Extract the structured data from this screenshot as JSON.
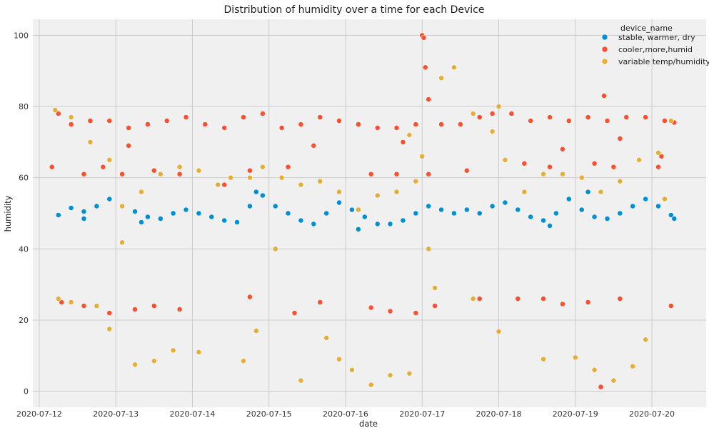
{
  "chart_data": {
    "type": "scatter",
    "title": "Distribution of humidity over a time for each Device",
    "xlabel": "date",
    "ylabel": "humidity",
    "x_ticks": [
      "2020-07-12",
      "2020-07-13",
      "2020-07-14",
      "2020-07-15",
      "2020-07-16",
      "2020-07-17",
      "2020-07-18",
      "2020-07-19",
      "2020-07-20"
    ],
    "y_ticks": [
      0,
      20,
      40,
      60,
      80,
      100
    ],
    "xlim": [
      "2020-07-11T22:00",
      "2020-07-20T17:00"
    ],
    "ylim": [
      -4.5,
      104.5
    ],
    "grid": true,
    "background": "#f0f0f0",
    "grid_color": "#cbcbcb",
    "legend": {
      "title": "device_name",
      "placement": "top-right"
    },
    "series": [
      {
        "name": "stable, warmer, dry",
        "color": "#008fd5",
        "points": [
          [
            "2020-07-12T06:00",
            49.5
          ],
          [
            "2020-07-12T10:00",
            51.5
          ],
          [
            "2020-07-12T14:00",
            50.5
          ],
          [
            "2020-07-12T18:00",
            52
          ],
          [
            "2020-07-12T22:00",
            54
          ],
          [
            "2020-07-13T02:00",
            52
          ],
          [
            "2020-07-13T06:00",
            50.5
          ],
          [
            "2020-07-13T10:00",
            49
          ],
          [
            "2020-07-13T14:00",
            48.5
          ],
          [
            "2020-07-13T18:00",
            50
          ],
          [
            "2020-07-13T22:00",
            51
          ],
          [
            "2020-07-14T02:00",
            50
          ],
          [
            "2020-07-14T06:00",
            49
          ],
          [
            "2020-07-14T10:00",
            48
          ],
          [
            "2020-07-14T14:00",
            47.5
          ],
          [
            "2020-07-14T18:00",
            52
          ],
          [
            "2020-07-14T22:00",
            55
          ],
          [
            "2020-07-15T02:00",
            52
          ],
          [
            "2020-07-15T06:00",
            50
          ],
          [
            "2020-07-15T10:00",
            48
          ],
          [
            "2020-07-15T14:00",
            47
          ],
          [
            "2020-07-15T18:00",
            50
          ],
          [
            "2020-07-15T22:00",
            53
          ],
          [
            "2020-07-16T02:00",
            51
          ],
          [
            "2020-07-16T06:00",
            49
          ],
          [
            "2020-07-16T10:00",
            47
          ],
          [
            "2020-07-16T14:00",
            47
          ],
          [
            "2020-07-16T18:00",
            48
          ],
          [
            "2020-07-16T22:00",
            50
          ],
          [
            "2020-07-17T02:00",
            52
          ],
          [
            "2020-07-17T06:00",
            51
          ],
          [
            "2020-07-17T10:00",
            50
          ],
          [
            "2020-07-17T14:00",
            51
          ],
          [
            "2020-07-17T18:00",
            50
          ],
          [
            "2020-07-17T22:00",
            52
          ],
          [
            "2020-07-18T02:00",
            53
          ],
          [
            "2020-07-18T06:00",
            51
          ],
          [
            "2020-07-18T10:00",
            49
          ],
          [
            "2020-07-18T14:00",
            48
          ],
          [
            "2020-07-18T18:00",
            50
          ],
          [
            "2020-07-18T22:00",
            54
          ],
          [
            "2020-07-19T02:00",
            51
          ],
          [
            "2020-07-19T06:00",
            49
          ],
          [
            "2020-07-19T10:00",
            48.5
          ],
          [
            "2020-07-19T14:00",
            50
          ],
          [
            "2020-07-19T18:00",
            52
          ],
          [
            "2020-07-19T22:00",
            54
          ],
          [
            "2020-07-20T02:00",
            52
          ],
          [
            "2020-07-20T06:00",
            49.5
          ],
          [
            "2020-07-20T07:00",
            48.5
          ],
          [
            "2020-07-12T14:00",
            48.5
          ],
          [
            "2020-07-14T20:00",
            56
          ],
          [
            "2020-07-16T04:00",
            45.5
          ],
          [
            "2020-07-18T16:00",
            46.5
          ],
          [
            "2020-07-19T04:00",
            56
          ],
          [
            "2020-07-13T08:00",
            47.5
          ]
        ]
      },
      {
        "name": "cooler,more,humid",
        "color": "#fc4f30",
        "points": [
          [
            "2020-07-12T06:00",
            78
          ],
          [
            "2020-07-12T10:00",
            75
          ],
          [
            "2020-07-12T16:00",
            76
          ],
          [
            "2020-07-12T22:00",
            76
          ],
          [
            "2020-07-13T04:00",
            74
          ],
          [
            "2020-07-13T10:00",
            75
          ],
          [
            "2020-07-13T16:00",
            76
          ],
          [
            "2020-07-13T22:00",
            77
          ],
          [
            "2020-07-14T04:00",
            75
          ],
          [
            "2020-07-14T10:00",
            74
          ],
          [
            "2020-07-14T16:00",
            77
          ],
          [
            "2020-07-14T22:00",
            78
          ],
          [
            "2020-07-15T04:00",
            74
          ],
          [
            "2020-07-15T10:00",
            75
          ],
          [
            "2020-07-15T16:00",
            77
          ],
          [
            "2020-07-15T22:00",
            76
          ],
          [
            "2020-07-16T04:00",
            75
          ],
          [
            "2020-07-16T10:00",
            74
          ],
          [
            "2020-07-16T16:00",
            74
          ],
          [
            "2020-07-16T22:00",
            75
          ],
          [
            "2020-07-17T02:00",
            82
          ],
          [
            "2020-07-17T06:00",
            75
          ],
          [
            "2020-07-17T12:00",
            75
          ],
          [
            "2020-07-17T18:00",
            77
          ],
          [
            "2020-07-17T22:00",
            78
          ],
          [
            "2020-07-18T04:00",
            78
          ],
          [
            "2020-07-18T10:00",
            76
          ],
          [
            "2020-07-18T16:00",
            77
          ],
          [
            "2020-07-18T22:00",
            76
          ],
          [
            "2020-07-19T04:00",
            77
          ],
          [
            "2020-07-19T10:00",
            76
          ],
          [
            "2020-07-19T16:00",
            77
          ],
          [
            "2020-07-19T22:00",
            77
          ],
          [
            "2020-07-20T04:00",
            76
          ],
          [
            "2020-07-20T07:00",
            75.5
          ],
          [
            "2020-07-12T04:00",
            63
          ],
          [
            "2020-07-12T14:00",
            61
          ],
          [
            "2020-07-12T20:00",
            63
          ],
          [
            "2020-07-13T02:00",
            61
          ],
          [
            "2020-07-13T12:00",
            62
          ],
          [
            "2020-07-13T20:00",
            61
          ],
          [
            "2020-07-14T10:00",
            58
          ],
          [
            "2020-07-14T18:00",
            62
          ],
          [
            "2020-07-15T06:00",
            63
          ],
          [
            "2020-07-16T08:00",
            61
          ],
          [
            "2020-07-16T16:00",
            61
          ],
          [
            "2020-07-17T02:00",
            61
          ],
          [
            "2020-07-17T14:00",
            62
          ],
          [
            "2020-07-18T08:00",
            64
          ],
          [
            "2020-07-18T16:00",
            63
          ],
          [
            "2020-07-19T06:00",
            64
          ],
          [
            "2020-07-19T12:00",
            63
          ],
          [
            "2020-07-20T02:00",
            63
          ],
          [
            "2020-07-12T07:00",
            25
          ],
          [
            "2020-07-12T14:00",
            24
          ],
          [
            "2020-07-12T22:00",
            22
          ],
          [
            "2020-07-13T06:00",
            23
          ],
          [
            "2020-07-13T12:00",
            24
          ],
          [
            "2020-07-13T20:00",
            23
          ],
          [
            "2020-07-14T18:00",
            26.5
          ],
          [
            "2020-07-15T08:00",
            22
          ],
          [
            "2020-07-15T16:00",
            25
          ],
          [
            "2020-07-16T08:00",
            23.5
          ],
          [
            "2020-07-16T14:00",
            22.5
          ],
          [
            "2020-07-16T22:00",
            22
          ],
          [
            "2020-07-17T04:00",
            24
          ],
          [
            "2020-07-17T18:00",
            26
          ],
          [
            "2020-07-18T06:00",
            26
          ],
          [
            "2020-07-18T14:00",
            26
          ],
          [
            "2020-07-18T20:00",
            24.5
          ],
          [
            "2020-07-19T04:00",
            25
          ],
          [
            "2020-07-19T14:00",
            26
          ],
          [
            "2020-07-20T06:00",
            24
          ],
          [
            "2020-07-17T00:00",
            100
          ],
          [
            "2020-07-17T00:30",
            99.3
          ],
          [
            "2020-07-17T01:00",
            91
          ],
          [
            "2020-07-19T09:00",
            83
          ],
          [
            "2020-07-19T08:00",
            1.2
          ],
          [
            "2020-07-13T04:00",
            69
          ],
          [
            "2020-07-15T14:00",
            69
          ],
          [
            "2020-07-16T18:00",
            70
          ],
          [
            "2020-07-18T20:00",
            68
          ],
          [
            "2020-07-19T14:00",
            71
          ],
          [
            "2020-07-20T03:00",
            66
          ]
        ]
      },
      {
        "name": "variable temp/humidity",
        "color": "#e5ae38",
        "points": [
          [
            "2020-07-12T05:00",
            79
          ],
          [
            "2020-07-12T10:00",
            77
          ],
          [
            "2020-07-12T16:00",
            70
          ],
          [
            "2020-07-12T22:00",
            65
          ],
          [
            "2020-07-13T02:00",
            52
          ],
          [
            "2020-07-13T08:00",
            56
          ],
          [
            "2020-07-13T14:00",
            61
          ],
          [
            "2020-07-13T20:00",
            63
          ],
          [
            "2020-07-14T02:00",
            62
          ],
          [
            "2020-07-14T08:00",
            58
          ],
          [
            "2020-07-14T12:00",
            60
          ],
          [
            "2020-07-14T18:00",
            60
          ],
          [
            "2020-07-14T22:00",
            63
          ],
          [
            "2020-07-15T04:00",
            60
          ],
          [
            "2020-07-15T10:00",
            58
          ],
          [
            "2020-07-15T16:00",
            59
          ],
          [
            "2020-07-15T22:00",
            56
          ],
          [
            "2020-07-16T04:00",
            51
          ],
          [
            "2020-07-16T10:00",
            55
          ],
          [
            "2020-07-16T16:00",
            56
          ],
          [
            "2020-07-16T22:00",
            59
          ],
          [
            "2020-07-17T00:00",
            66
          ],
          [
            "2020-07-17T06:00",
            88
          ],
          [
            "2020-07-17T10:00",
            91
          ],
          [
            "2020-07-17T16:00",
            78
          ],
          [
            "2020-07-17T22:00",
            73
          ],
          [
            "2020-07-18T02:00",
            65
          ],
          [
            "2020-07-18T08:00",
            56
          ],
          [
            "2020-07-18T14:00",
            61
          ],
          [
            "2020-07-18T20:00",
            61
          ],
          [
            "2020-07-19T02:00",
            60
          ],
          [
            "2020-07-19T08:00",
            56
          ],
          [
            "2020-07-19T14:00",
            59
          ],
          [
            "2020-07-19T20:00",
            65
          ],
          [
            "2020-07-20T02:00",
            67
          ],
          [
            "2020-07-20T06:00",
            76
          ],
          [
            "2020-07-12T06:00",
            26
          ],
          [
            "2020-07-12T10:00",
            25
          ],
          [
            "2020-07-12T18:00",
            24
          ],
          [
            "2020-07-12T22:00",
            17.5
          ],
          [
            "2020-07-13T02:00",
            41.8
          ],
          [
            "2020-07-13T06:00",
            7.5
          ],
          [
            "2020-07-13T12:00",
            8.5
          ],
          [
            "2020-07-13T18:00",
            11.5
          ],
          [
            "2020-07-14T02:00",
            11
          ],
          [
            "2020-07-14T16:00",
            8.5
          ],
          [
            "2020-07-14T20:00",
            17
          ],
          [
            "2020-07-15T02:00",
            40
          ],
          [
            "2020-07-15T10:00",
            3
          ],
          [
            "2020-07-15T18:00",
            15
          ],
          [
            "2020-07-15T22:00",
            9
          ],
          [
            "2020-07-16T02:00",
            6
          ],
          [
            "2020-07-16T08:00",
            1.8
          ],
          [
            "2020-07-16T14:00",
            4.5
          ],
          [
            "2020-07-16T20:00",
            5
          ],
          [
            "2020-07-17T04:00",
            29
          ],
          [
            "2020-07-17T16:00",
            26
          ],
          [
            "2020-07-18T00:00",
            16.8
          ],
          [
            "2020-07-18T14:00",
            9
          ],
          [
            "2020-07-19T00:00",
            9.5
          ],
          [
            "2020-07-19T06:00",
            6
          ],
          [
            "2020-07-19T12:00",
            3
          ],
          [
            "2020-07-19T18:00",
            7
          ],
          [
            "2020-07-19T22:00",
            14.5
          ],
          [
            "2020-07-20T04:00",
            54
          ],
          [
            "2020-07-17T02:00",
            40
          ],
          [
            "2020-07-18T00:00",
            80
          ],
          [
            "2020-07-16T20:00",
            72
          ]
        ]
      }
    ]
  }
}
